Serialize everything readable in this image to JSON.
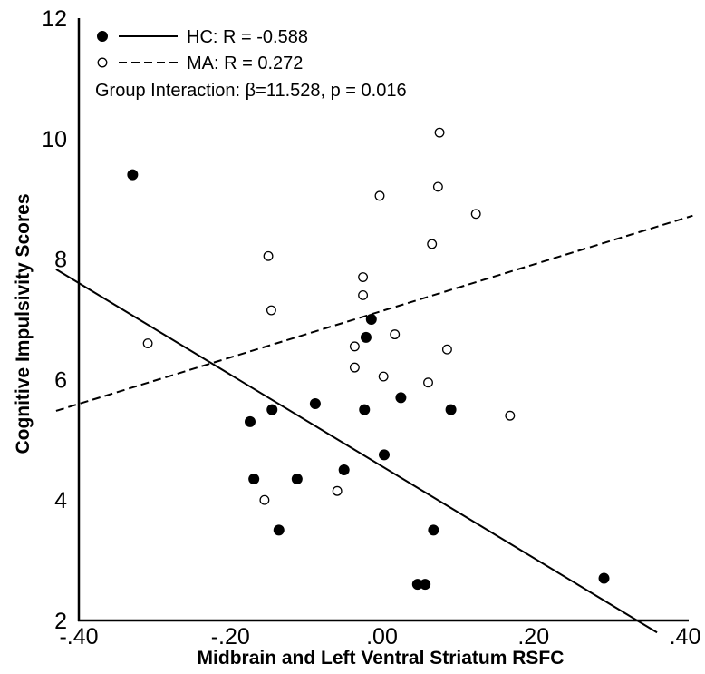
{
  "chart_data": {
    "type": "scatter",
    "xlabel": "Midbrain and Left Ventral Striatum RSFC",
    "ylabel": "Cognitive Impulsivity Scores",
    "xlim": [
      -0.4,
      0.4
    ],
    "ylim": [
      2,
      12
    ],
    "x_ticks": [
      {
        "value": -0.4,
        "label": "-.40"
      },
      {
        "value": -0.2,
        "label": "-.20"
      },
      {
        "value": 0.0,
        "label": ".00"
      },
      {
        "value": 0.2,
        "label": ".20"
      },
      {
        "value": 0.4,
        "label": ".40"
      }
    ],
    "y_ticks": [
      {
        "value": 2,
        "label": "2"
      },
      {
        "value": 4,
        "label": "4"
      },
      {
        "value": 6,
        "label": "6"
      },
      {
        "value": 8,
        "label": "8"
      },
      {
        "value": 10,
        "label": "10"
      },
      {
        "value": 12,
        "label": "12"
      }
    ],
    "grid": false,
    "legend_position": "top-left",
    "annotation": "Group Interaction: β=11.528, p = 0.016",
    "series": [
      {
        "name": "HC: R = -0.588",
        "marker": "filled-circle",
        "line_style": "solid",
        "color": "#000000",
        "points": [
          [
            -0.329,
            9.4
          ],
          [
            -0.174,
            5.3
          ],
          [
            -0.169,
            4.35
          ],
          [
            -0.145,
            5.5
          ],
          [
            -0.136,
            3.5
          ],
          [
            -0.112,
            4.35
          ],
          [
            -0.088,
            5.6
          ],
          [
            -0.05,
            4.5
          ],
          [
            -0.023,
            5.5
          ],
          [
            -0.021,
            6.7
          ],
          [
            -0.014,
            7.0
          ],
          [
            0.003,
            4.75
          ],
          [
            0.025,
            5.7
          ],
          [
            0.047,
            2.6
          ],
          [
            0.057,
            2.6
          ],
          [
            0.068,
            3.5
          ],
          [
            0.091,
            5.5
          ],
          [
            0.293,
            2.7
          ]
        ],
        "fit_line": {
          "x": [
            -0.43,
            0.363
          ],
          "y": [
            7.83,
            1.8
          ]
        }
      },
      {
        "name": "MA: R = 0.272",
        "marker": "open-circle",
        "line_style": "dashed",
        "color": "#000000",
        "points": [
          [
            -0.309,
            6.6
          ],
          [
            -0.15,
            8.05
          ],
          [
            -0.146,
            7.15
          ],
          [
            -0.155,
            4.0
          ],
          [
            -0.059,
            4.15
          ],
          [
            -0.036,
            6.55
          ],
          [
            -0.036,
            6.2
          ],
          [
            -0.025,
            7.7
          ],
          [
            -0.025,
            7.4
          ],
          [
            -0.003,
            9.05
          ],
          [
            0.002,
            6.05
          ],
          [
            0.017,
            6.75
          ],
          [
            0.061,
            5.95
          ],
          [
            0.066,
            8.25
          ],
          [
            0.074,
            9.2
          ],
          [
            0.076,
            10.1
          ],
          [
            0.086,
            6.5
          ],
          [
            0.124,
            8.75
          ],
          [
            0.169,
            5.4
          ]
        ],
        "fit_line": {
          "x": [
            -0.43,
            0.41
          ],
          "y": [
            5.48,
            8.72
          ]
        }
      }
    ]
  }
}
